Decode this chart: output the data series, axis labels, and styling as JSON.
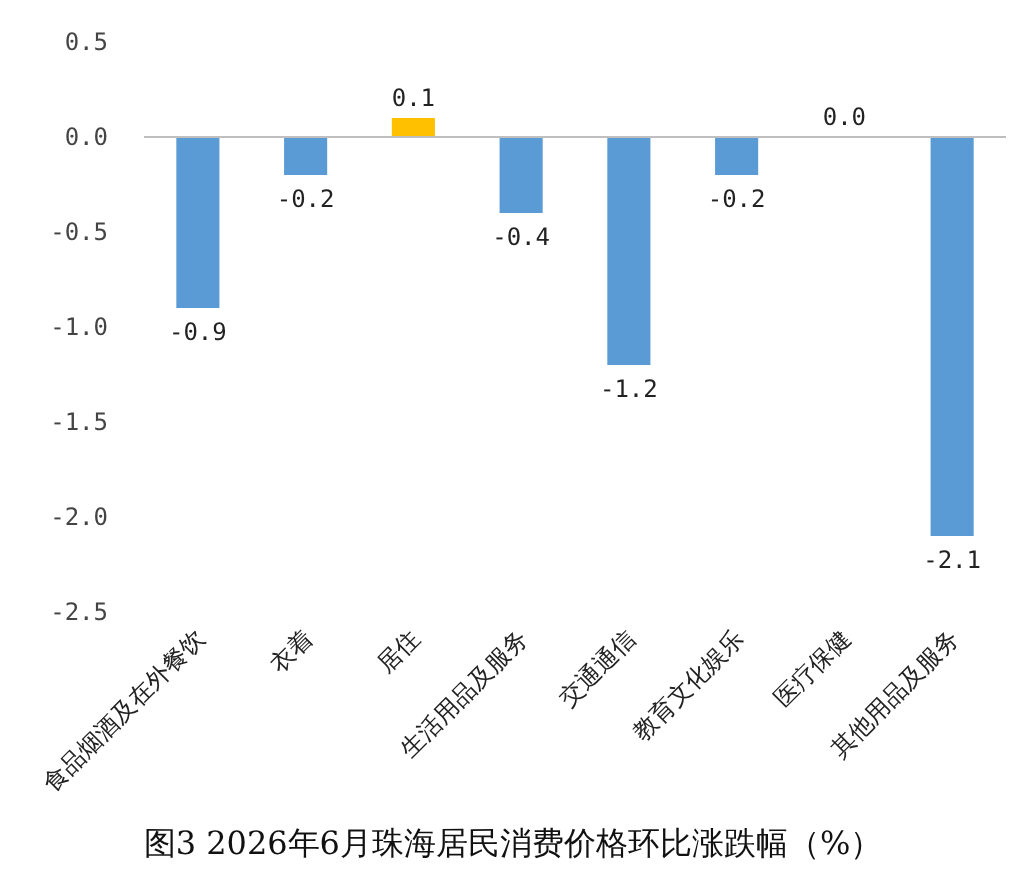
{
  "chart_data": {
    "type": "bar",
    "title": "图3 2026年6月珠海居民消费价格环比涨跌幅（%）",
    "categories": [
      "食品烟酒及在外餐饮",
      "衣着",
      "居住",
      "生活用品及服务",
      "交通通信",
      "教育文化娱乐",
      "医疗保健",
      "其他用品及服务"
    ],
    "values": [
      -0.9,
      -0.2,
      0.1,
      -0.4,
      -1.2,
      -0.2,
      0.0,
      -2.1
    ],
    "colors": [
      "#5b9bd5",
      "#5b9bd5",
      "#ffc000",
      "#5b9bd5",
      "#5b9bd5",
      "#5b9bd5",
      "#5b9bd5",
      "#5b9bd5"
    ],
    "value_labels": [
      "-0.9",
      "-0.2",
      "0.1",
      "-0.4",
      "-1.2",
      "-0.2",
      "0.0",
      "-2.1"
    ],
    "ylim": [
      -2.5,
      0.5
    ],
    "yticks": [
      0.5,
      {
        "value": 0,
        "label": "0.0"
      },
      -0.5,
      {
        "value": -1,
        "label": "-1.0"
      },
      -1.5,
      {
        "value": -2,
        "label": "-2.0"
      },
      -2.5
    ],
    "orientation": "vertical"
  }
}
